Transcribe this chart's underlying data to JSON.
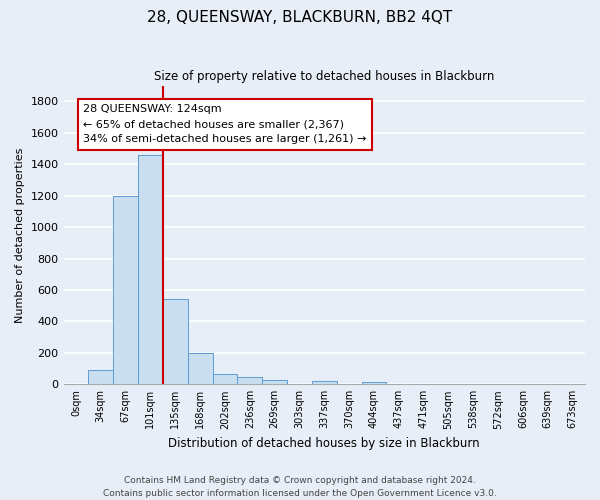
{
  "title": "28, QUEENSWAY, BLACKBURN, BB2 4QT",
  "subtitle": "Size of property relative to detached houses in Blackburn",
  "xlabel": "Distribution of detached houses by size in Blackburn",
  "ylabel": "Number of detached properties",
  "bar_labels": [
    "0sqm",
    "34sqm",
    "67sqm",
    "101sqm",
    "135sqm",
    "168sqm",
    "202sqm",
    "236sqm",
    "269sqm",
    "303sqm",
    "337sqm",
    "370sqm",
    "404sqm",
    "437sqm",
    "471sqm",
    "505sqm",
    "538sqm",
    "572sqm",
    "606sqm",
    "639sqm",
    "673sqm"
  ],
  "bar_values": [
    0,
    90,
    1200,
    1460,
    540,
    200,
    65,
    47,
    30,
    0,
    22,
    0,
    15,
    0,
    0,
    0,
    0,
    0,
    0,
    0,
    0
  ],
  "bar_color": "#c9dff0",
  "bar_edge_color": "#5b9bd5",
  "vline_index": 3.5,
  "vline_color": "#cc0000",
  "annotation_title": "28 QUEENSWAY: 124sqm",
  "annotation_line1": "← 65% of detached houses are smaller (2,367)",
  "annotation_line2": "34% of semi-detached houses are larger (1,261) →",
  "annotation_box_color": "#ffffff",
  "annotation_box_edge_color": "#cc0000",
  "ylim": [
    0,
    1900
  ],
  "yticks": [
    0,
    200,
    400,
    600,
    800,
    1000,
    1200,
    1400,
    1600,
    1800
  ],
  "footer_line1": "Contains HM Land Registry data © Crown copyright and database right 2024.",
  "footer_line2": "Contains public sector information licensed under the Open Government Licence v3.0.",
  "bg_color": "#e8eef7",
  "grid_color": "#ffffff"
}
